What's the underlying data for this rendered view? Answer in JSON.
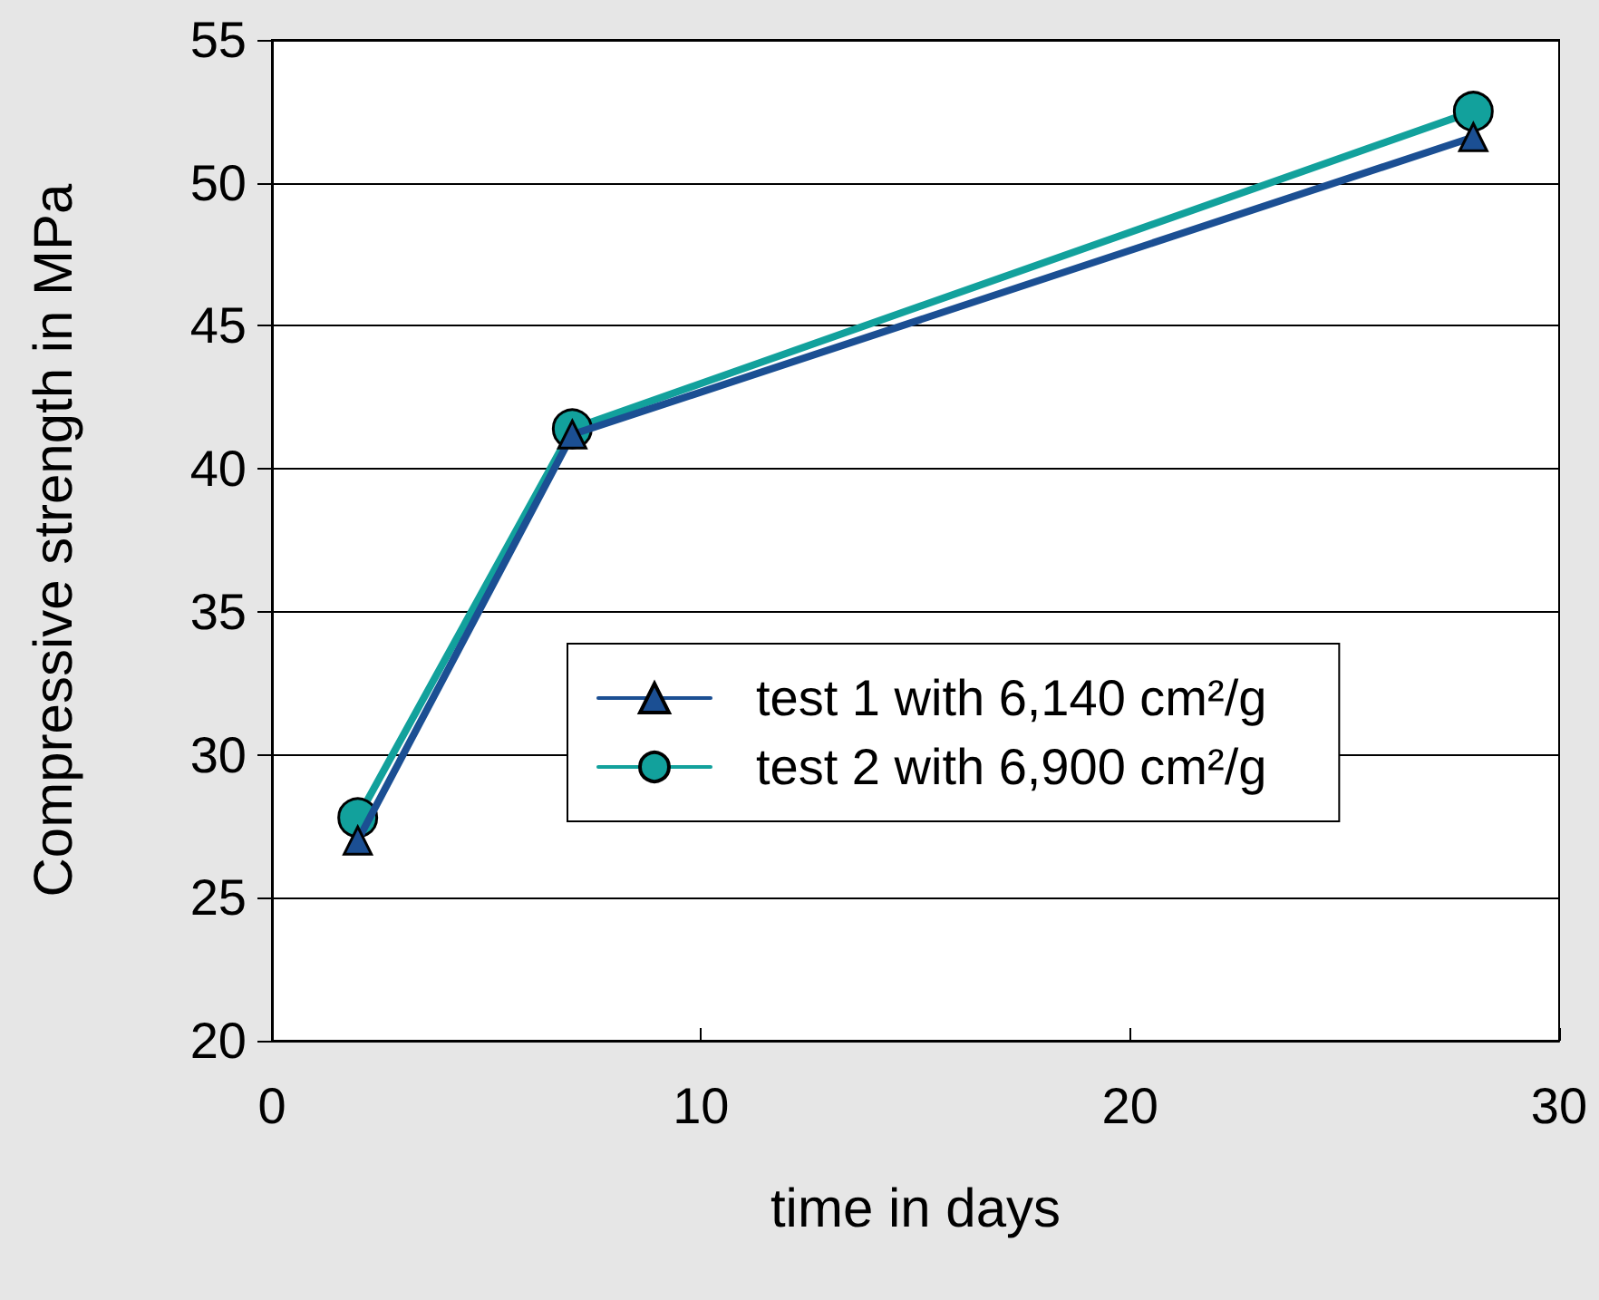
{
  "chart_data": {
    "type": "line",
    "xlabel": "time in days",
    "ylabel": "Compressive strength in MPa",
    "series": [
      {
        "name": "test 1 with 6,140 cm²/g",
        "color": "#1b4f93",
        "marker": "triangle",
        "x": [
          2,
          7,
          28
        ],
        "values": [
          27.0,
          41.2,
          51.6
        ]
      },
      {
        "name": "test 2 with 6,900 cm²/g",
        "color": "#12a19c",
        "marker": "circle",
        "x": [
          2,
          7,
          28
        ],
        "values": [
          27.8,
          41.4,
          52.5
        ]
      }
    ],
    "xlim": [
      0,
      30
    ],
    "xticks": [
      0,
      10,
      20,
      30
    ],
    "ylim": [
      20,
      55
    ],
    "yticks": [
      20,
      25,
      30,
      35,
      40,
      45,
      50,
      55
    ],
    "grid": "y",
    "legend": "right",
    "line_style": "solid"
  }
}
